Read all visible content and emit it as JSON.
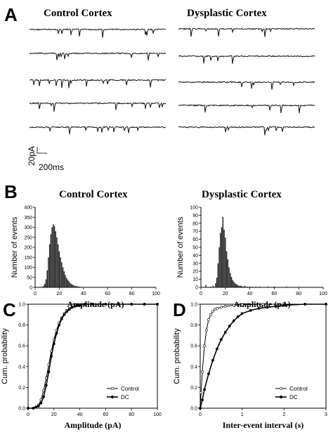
{
  "panel_letters": {
    "a": "A",
    "b": "B",
    "c": "C",
    "d": "D"
  },
  "titles": {
    "a_left": "Control Cortex",
    "a_right": "Dysplastic Cortex",
    "b_left": "Control Cortex",
    "b_right": "Dysplastic Cortex"
  },
  "scale_bar": {
    "current": "20pA",
    "time": "200ms"
  },
  "chart_data": [
    {
      "id": "B-left",
      "type": "bar",
      "title": "Control Cortex",
      "xlabel": "Amplitude (pA)",
      "ylabel": "Number of events",
      "xlim": [
        0,
        100
      ],
      "ylim": [
        0,
        400
      ],
      "xticks": [
        0,
        20,
        40,
        60,
        80,
        100
      ],
      "yticks": [
        0,
        50,
        100,
        150,
        200,
        250,
        300,
        350,
        400
      ],
      "bin_width": 1,
      "x": [
        6,
        7,
        8,
        9,
        10,
        11,
        12,
        13,
        14,
        15,
        16,
        17,
        18,
        19,
        20,
        21,
        22,
        23,
        24,
        25,
        26,
        27,
        28,
        29,
        30,
        31,
        32,
        33,
        34,
        35,
        36,
        37,
        38,
        39,
        40
      ],
      "values": [
        3,
        8,
        18,
        40,
        85,
        150,
        215,
        265,
        300,
        315,
        305,
        280,
        250,
        215,
        180,
        150,
        125,
        100,
        80,
        62,
        48,
        38,
        30,
        22,
        17,
        13,
        10,
        8,
        6,
        5,
        4,
        3,
        2,
        2,
        1
      ]
    },
    {
      "id": "B-right",
      "type": "bar",
      "title": "Dysplastic Cortex",
      "xlabel": "Amplitude (pA)",
      "ylabel": "Number of events",
      "xlim": [
        0,
        100
      ],
      "ylim": [
        0,
        100
      ],
      "xticks": [
        0,
        20,
        40,
        60,
        80,
        100
      ],
      "yticks": [
        0,
        10,
        20,
        30,
        40,
        50,
        60,
        70,
        80,
        90,
        100
      ],
      "bin_width": 1,
      "x": [
        4,
        8,
        10,
        12,
        13,
        14,
        15,
        16,
        17,
        18,
        19,
        20,
        21,
        22,
        23,
        24,
        25,
        26,
        27,
        28,
        29,
        30,
        31,
        32,
        33,
        34,
        35,
        36,
        38,
        40,
        42,
        45,
        48,
        55,
        60,
        70
      ],
      "values": [
        3,
        1,
        2,
        5,
        12,
        30,
        50,
        68,
        75,
        88,
        72,
        62,
        45,
        35,
        25,
        18,
        13,
        9,
        7,
        5,
        4,
        3,
        2,
        2,
        2,
        1,
        1,
        2,
        1,
        1,
        1,
        1,
        1,
        1,
        1,
        1
      ]
    },
    {
      "id": "C",
      "type": "line",
      "xlabel": "Amplitude (pA)",
      "ylabel": "Cum. probability",
      "xlim": [
        0,
        100
      ],
      "ylim": [
        0,
        1
      ],
      "xticks": [
        0,
        20,
        40,
        60,
        80,
        100
      ],
      "yticks": [
        0,
        0.2,
        0.4,
        0.6,
        0.8,
        1.0
      ],
      "legend": "bottom-right",
      "series": [
        {
          "name": "Control",
          "marker": "open-circle",
          "x": [
            0,
            4,
            6,
            8,
            10,
            12,
            14,
            16,
            18,
            20,
            22,
            24,
            26,
            28,
            30,
            32,
            34,
            36,
            38,
            40,
            44,
            50,
            60,
            70,
            80,
            90,
            100
          ],
          "values": [
            0,
            0,
            0.01,
            0.03,
            0.08,
            0.17,
            0.29,
            0.42,
            0.55,
            0.66,
            0.75,
            0.82,
            0.87,
            0.91,
            0.94,
            0.96,
            0.97,
            0.98,
            0.99,
            0.99,
            1,
            1,
            1,
            1,
            1,
            1,
            1
          ]
        },
        {
          "name": "DC",
          "marker": "filled-circle",
          "x": [
            0,
            4,
            6,
            8,
            10,
            12,
            14,
            16,
            18,
            20,
            22,
            24,
            26,
            28,
            30,
            32,
            34,
            36,
            38,
            40,
            44,
            50,
            60,
            70,
            80,
            90,
            100
          ],
          "values": [
            0,
            0,
            0.01,
            0.02,
            0.05,
            0.11,
            0.22,
            0.35,
            0.5,
            0.62,
            0.72,
            0.8,
            0.86,
            0.9,
            0.93,
            0.95,
            0.97,
            0.98,
            0.99,
            0.99,
            1,
            1,
            1,
            1,
            1,
            1,
            1
          ]
        }
      ]
    },
    {
      "id": "D",
      "type": "line",
      "xlabel": "Inter-event interval (s)",
      "ylabel": "Cum. probability",
      "xlim": [
        0,
        3
      ],
      "ylim": [
        0,
        1
      ],
      "xticks": [
        0,
        1,
        2,
        3
      ],
      "yticks": [
        0,
        0.2,
        0.4,
        0.6,
        0.8,
        1.0
      ],
      "legend": "bottom-right",
      "series": [
        {
          "name": "Control",
          "marker": "open-circle",
          "x": [
            0,
            0.02,
            0.05,
            0.1,
            0.15,
            0.2,
            0.25,
            0.3,
            0.35,
            0.4,
            0.5,
            0.6,
            0.8,
            1.0,
            1.5,
            2,
            2.5,
            3
          ],
          "values": [
            0,
            0.15,
            0.35,
            0.6,
            0.75,
            0.85,
            0.9,
            0.93,
            0.95,
            0.96,
            0.97,
            0.98,
            0.99,
            0.995,
            1,
            1,
            1,
            1
          ]
        },
        {
          "name": "DC",
          "marker": "filled-circle",
          "x": [
            0,
            0.05,
            0.1,
            0.2,
            0.3,
            0.4,
            0.5,
            0.6,
            0.7,
            0.8,
            0.9,
            1.0,
            1.2,
            1.4,
            1.6,
            1.8,
            2.0,
            2.5,
            3
          ],
          "values": [
            0,
            0.08,
            0.18,
            0.33,
            0.46,
            0.57,
            0.66,
            0.73,
            0.79,
            0.84,
            0.88,
            0.91,
            0.94,
            0.96,
            0.97,
            0.98,
            0.99,
            1,
            1
          ]
        }
      ]
    }
  ]
}
